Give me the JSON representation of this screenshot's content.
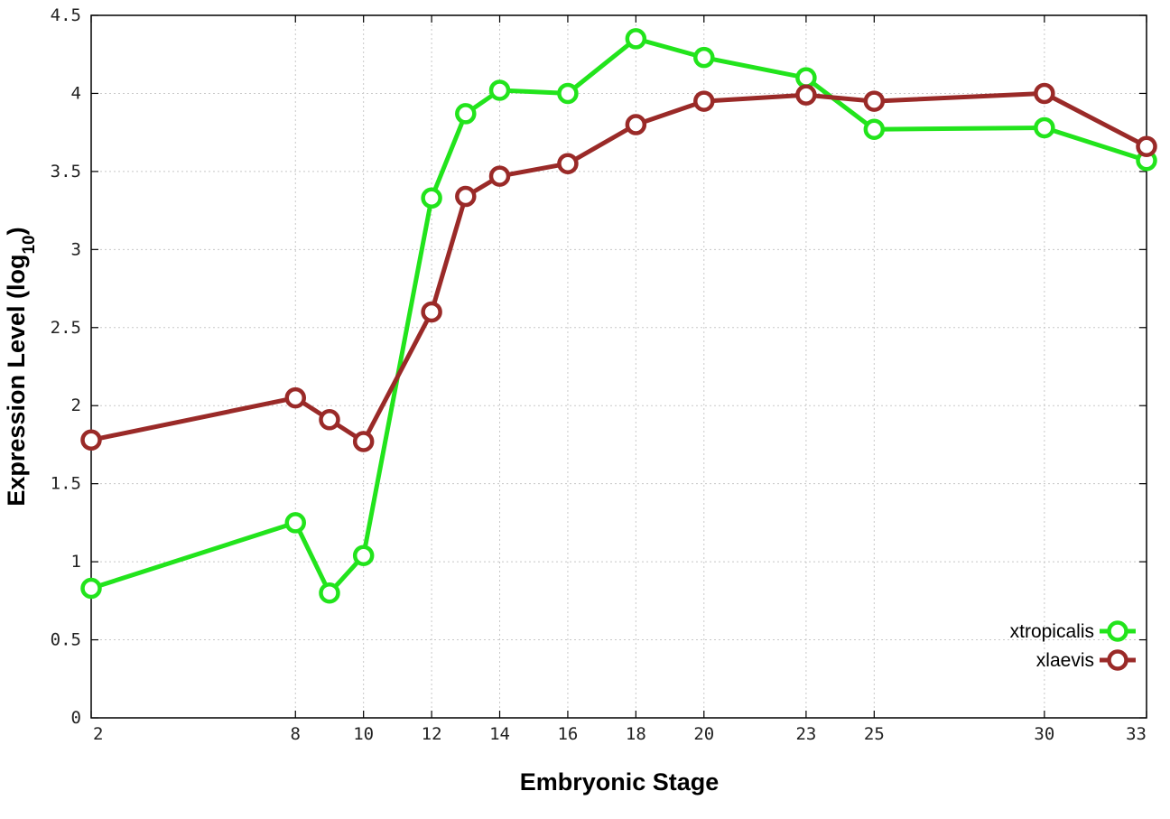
{
  "chart_data": {
    "type": "line",
    "title": "",
    "xlabel": "Embryonic Stage",
    "ylabel_main": "Expression Level (log",
    "ylabel_sub": "10",
    "ylabel_end": ")",
    "xlim": [
      2,
      33
    ],
    "ylim": [
      0,
      4.5
    ],
    "x_ticks": [
      2,
      8,
      10,
      12,
      14,
      16,
      18,
      20,
      23,
      25,
      30,
      33
    ],
    "x_tick_labels": [
      "2",
      "8",
      "10",
      "12",
      "14",
      "16",
      "18",
      "20",
      "23",
      "25",
      "30",
      "33"
    ],
    "y_ticks": [
      0,
      0.5,
      1,
      1.5,
      2,
      2.5,
      3,
      3.5,
      4,
      4.5
    ],
    "y_tick_labels": [
      "0",
      "0.5",
      "1",
      "1.5",
      "2",
      "2.5",
      "3",
      "3.5",
      "4",
      "4.5"
    ],
    "grid": true,
    "legend_position": "bottom-right",
    "series": [
      {
        "name": "xtropicalis",
        "color": "#22e41c",
        "x": [
          2,
          8,
          9,
          10,
          12,
          13,
          14,
          16,
          18,
          20,
          23,
          25,
          30,
          33
        ],
        "y": [
          0.83,
          1.25,
          0.8,
          1.04,
          3.33,
          3.87,
          4.02,
          4.0,
          4.35,
          4.23,
          4.1,
          3.77,
          3.78,
          3.57
        ]
      },
      {
        "name": "xlaevis",
        "color": "#9a2a28",
        "x": [
          2,
          8,
          9,
          10,
          12,
          13,
          14,
          16,
          18,
          20,
          23,
          25,
          30,
          33
        ],
        "y": [
          1.78,
          2.05,
          1.91,
          1.77,
          2.6,
          3.34,
          3.47,
          3.55,
          3.8,
          3.95,
          3.99,
          3.95,
          4.0,
          3.66
        ]
      }
    ]
  }
}
